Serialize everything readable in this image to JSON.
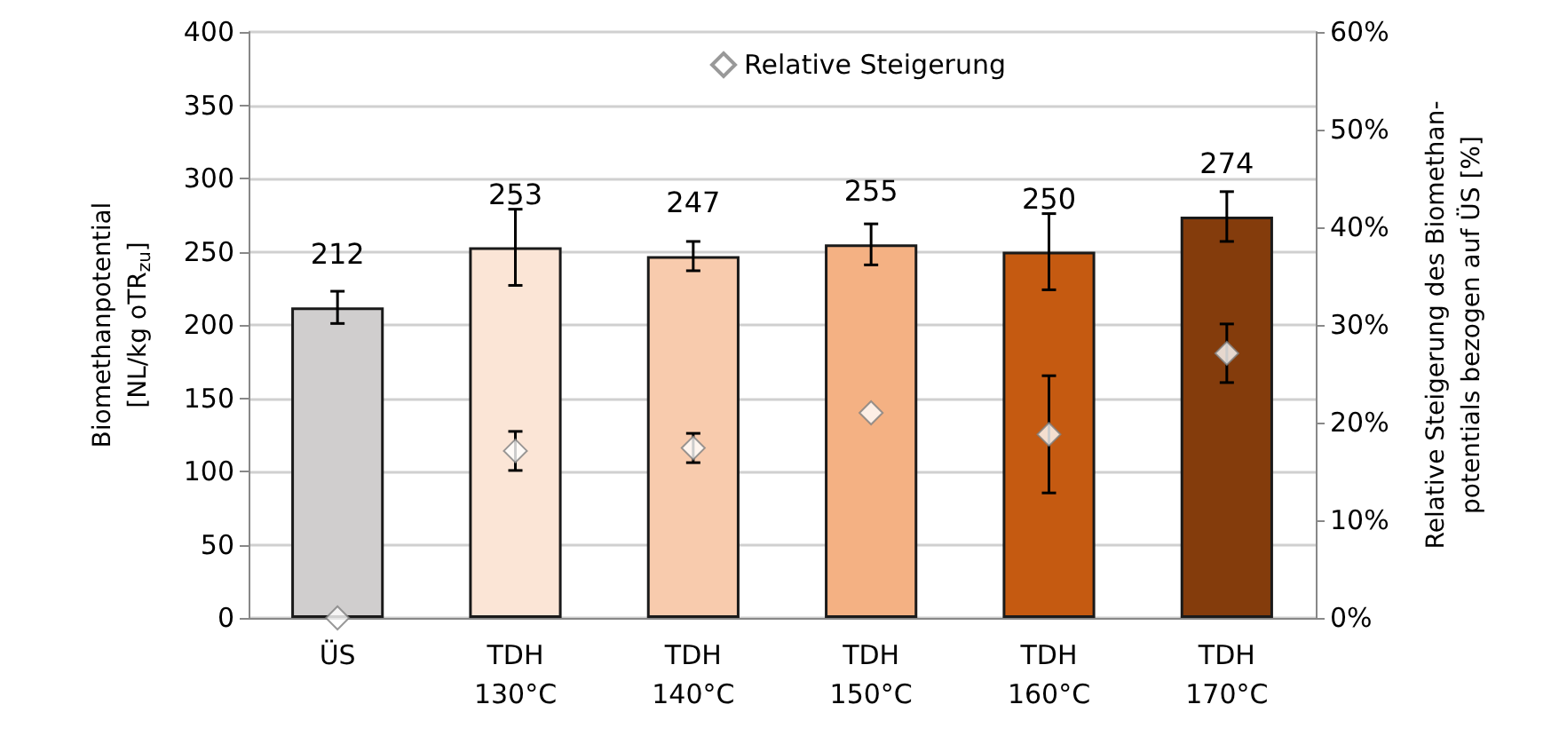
{
  "chart_data": {
    "type": "bar",
    "categories": [
      "ÜS",
      "TDH\n130°C",
      "TDH\n140°C",
      "TDH\n150°C",
      "TDH\n160°C",
      "TDH\n170°C"
    ],
    "ylabel": "Biomethanpotential\n[NL/kg oTR$_{zu}$]",
    "y2label": "Relative Steigerung des Biomethan-\npotentials bezogen auf ÜS [%]",
    "series": [
      {
        "colors": [
          "#d0cece",
          "#fbe5d6",
          "#f8cbad",
          "#f4b183",
          "#c55a11",
          "#843c0c"
        ],
        "values": [
          212,
          253,
          247,
          255,
          250,
          274
        ],
        "errors": [
          11,
          26,
          10,
          14,
          26,
          17
        ],
        "data_labels": true
      },
      {
        "type": "scatter",
        "name": "Relative Steigerung",
        "color": "#ffffff",
        "axis": "y2",
        "marker": "diamond",
        "values": [
          0,
          17.1,
          17.4,
          21.0,
          18.8,
          27.1
        ],
        "errors": [
          null,
          2,
          1.5,
          null,
          6,
          3
        ]
      }
    ],
    "ylim": [
      0,
      400
    ],
    "yticks": [
      0,
      50,
      100,
      150,
      200,
      250,
      300,
      350,
      400
    ],
    "y2lim": [
      0,
      60
    ],
    "y2ticks": [
      {
        "value": 0,
        "label": "0%"
      },
      {
        "value": 10,
        "label": "10%"
      },
      {
        "value": 20,
        "label": "20%"
      },
      {
        "value": 30,
        "label": "30%"
      },
      {
        "value": 40,
        "label": "40%"
      },
      {
        "value": 50,
        "label": "50%"
      },
      {
        "value": 60,
        "label": "60%"
      }
    ],
    "grid": "y",
    "legend": "top"
  }
}
